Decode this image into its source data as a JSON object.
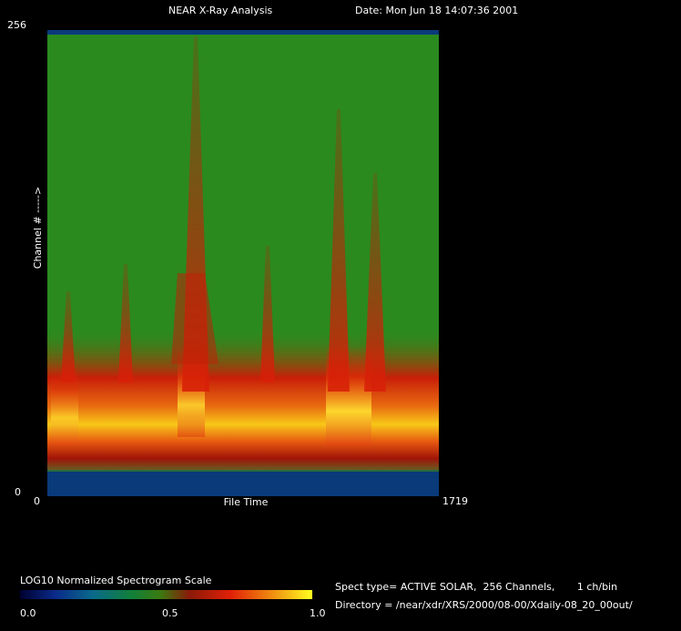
{
  "header": {
    "title": "NEAR X-Ray Analysis",
    "date": "Date: Mon Jun 18 14:07:36 2001"
  },
  "plot": {
    "y_axis": {
      "label": "Channel # ----->",
      "top": "256",
      "bottom": "0"
    },
    "x_axis": {
      "label": "File Time",
      "left": "0",
      "right": "1719"
    }
  },
  "colorbar": {
    "title": "LOG10 Normalized Spectrogram Scale",
    "labels": [
      "0.0",
      "0.5",
      "1.0"
    ]
  },
  "info": {
    "spect_type": "Spect type= ACTIVE SOLAR,  256 Channels,       1 ch/bin",
    "directory": "Directory = /near/xdr/XRS/2000/08-00/Xdaily-08_20_00out/"
  }
}
